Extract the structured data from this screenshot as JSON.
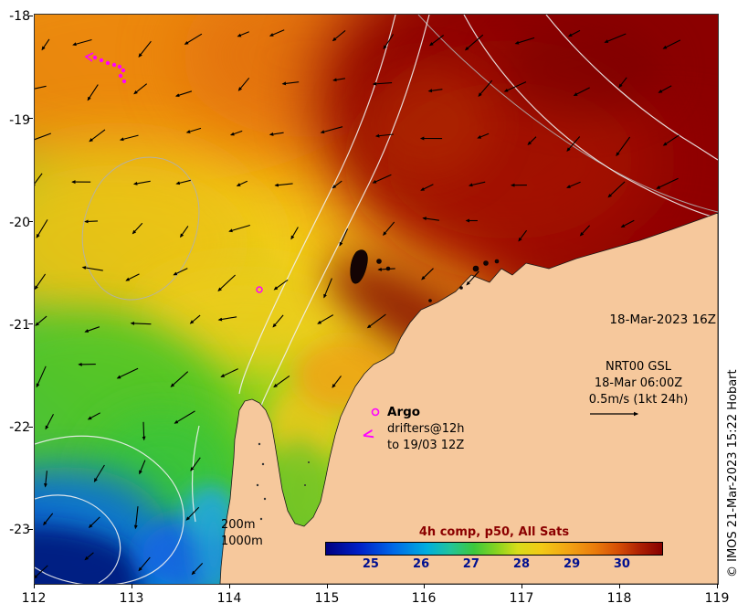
{
  "axes": {
    "x": [
      "112",
      "113",
      "114",
      "115",
      "116",
      "117",
      "118",
      "119"
    ],
    "y": [
      "-18",
      "-19",
      "-20",
      "-21",
      "-22",
      "-23"
    ]
  },
  "annotations": {
    "datetime": "18-Mar-2023 16Z",
    "nrt_line1": "NRT00 GSL",
    "nrt_line2": "18-Mar 06:00Z",
    "nrt_line3": "0.5m/s (1kt 24h)",
    "argo_label": "Argo",
    "drifters_line1": "drifters@12h",
    "drifters_line2": "to 19/03 12Z",
    "drifter_glyph": "<",
    "isobath_label_1": "200m",
    "isobath_label_2": "1000m",
    "copyright": "© IMOS 21-Mar-2023 15:22 Hobart"
  },
  "colorbar": {
    "title": "4h comp, p50, All Sats",
    "ticks": [
      "25",
      "26",
      "27",
      "28",
      "29",
      "30"
    ]
  },
  "colors": {
    "marker": "#ff00ff",
    "land": "#f6c89c",
    "colorbar_title": "#8b0000",
    "colorbar_tick": "#001090"
  },
  "chart_data": {
    "type": "heatmap",
    "variable_hint": "sea surface temperature shown by colorbar",
    "x_ticks": [
      112,
      113,
      114,
      115,
      116,
      117,
      118,
      119
    ],
    "y_ticks": [
      -18,
      -19,
      -20,
      -21,
      -22,
      -23
    ],
    "color_scale_ticks": [
      25,
      26,
      27,
      28,
      29,
      30
    ],
    "color_scale_title": "4h comp, p50, All Sats",
    "overlays_from_legend": [
      "NRT00 GSL velocity vectors, 18-Mar 06:00Z, scale arrow 0.5m/s (1kt 24h)",
      "Argo float marker",
      "drifters@12h to 19/03 12Z",
      "isobaths 200m and 1000m"
    ]
  }
}
